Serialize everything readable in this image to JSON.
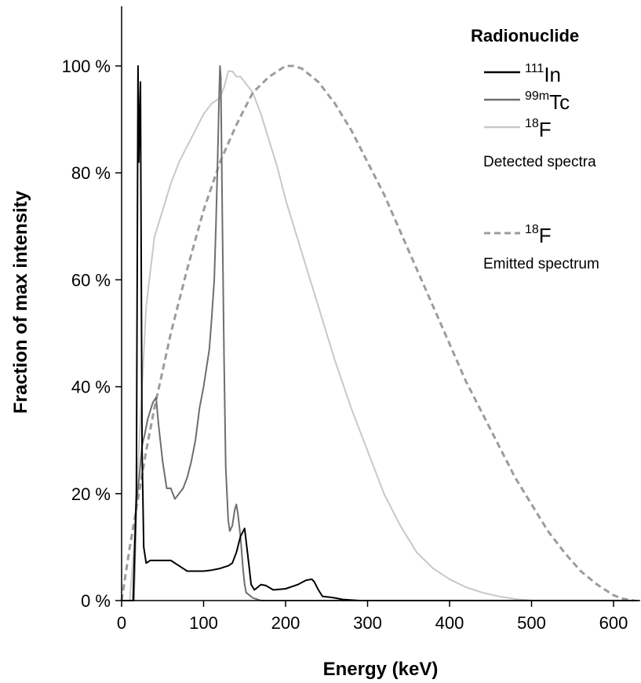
{
  "chart_data": {
    "type": "line",
    "xlabel": "Energy (keV)",
    "ylabel": "Fraction of max intensity",
    "xlim": [
      0,
      630
    ],
    "ylim": [
      0,
      100
    ],
    "x_ticks": [
      0,
      100,
      200,
      300,
      400,
      500,
      600
    ],
    "y_ticks": [
      0,
      20,
      40,
      60,
      80,
      100
    ],
    "y_tick_labels": [
      "0 %",
      "20 %",
      "40 %",
      "60 %",
      "80 %",
      "100 %"
    ],
    "legend": {
      "title": "Radionuclide",
      "placement": "top-right",
      "group_captions": [
        "Detected spectra",
        "Emitted spectrum"
      ]
    },
    "series": [
      {
        "name": "111In",
        "nuclide_sup": "111",
        "nuclide_base": "In",
        "group": "Detected spectra",
        "color": "#000000",
        "style": "solid",
        "x": [
          0,
          14,
          18,
          20,
          21,
          22,
          23,
          24,
          25,
          27,
          30,
          35,
          40,
          50,
          60,
          70,
          80,
          90,
          100,
          110,
          120,
          130,
          135,
          140,
          145,
          150,
          155,
          158,
          162,
          170,
          176,
          185,
          200,
          215,
          225,
          232,
          235,
          240,
          245,
          255,
          260,
          270,
          290,
          350,
          630
        ],
        "y": [
          0,
          0,
          20,
          100,
          82,
          90,
          97,
          60,
          28,
          10,
          7,
          7.5,
          7.5,
          7.5,
          7.5,
          6.5,
          5.5,
          5.5,
          5.5,
          5.7,
          6,
          6.5,
          7,
          9,
          12,
          13.5,
          7,
          3,
          2,
          3,
          2.8,
          2,
          2.2,
          3,
          3.8,
          4,
          3.5,
          2,
          0.8,
          0.6,
          0.5,
          0.2,
          0,
          0,
          0
        ]
      },
      {
        "name": "99mTc",
        "nuclide_sup": "99m",
        "nuclide_base": "Tc",
        "group": "Detected spectra",
        "color": "#6e6e6e",
        "style": "solid",
        "x": [
          0,
          15,
          18,
          22,
          25,
          28,
          32,
          38,
          42,
          45,
          50,
          55,
          60,
          65,
          70,
          75,
          80,
          85,
          90,
          95,
          100,
          103,
          107,
          110,
          113,
          115,
          117,
          119,
          120,
          121,
          123,
          125,
          127,
          130,
          132,
          135,
          138,
          140,
          142,
          145,
          148,
          150,
          152,
          160,
          170,
          630
        ],
        "y": [
          0,
          0,
          18,
          24,
          29,
          31,
          34,
          37,
          38,
          33,
          26,
          21,
          21,
          19,
          20,
          21,
          23,
          26,
          30,
          36,
          40,
          43,
          47,
          53,
          60,
          70,
          82,
          95,
          100,
          98,
          70,
          45,
          25,
          15,
          13,
          14,
          17,
          18,
          16,
          12,
          6,
          3,
          1.5,
          0.5,
          0,
          0
        ]
      },
      {
        "name": "18F",
        "nuclide_sup": "18",
        "nuclide_base": "F",
        "group": "Detected spectra",
        "color": "#c8c8c8",
        "style": "solid",
        "x": [
          0,
          10,
          15,
          20,
          25,
          30,
          40,
          50,
          60,
          70,
          80,
          90,
          100,
          110,
          120,
          125,
          130,
          135,
          140,
          145,
          150,
          155,
          160,
          170,
          180,
          190,
          200,
          220,
          240,
          260,
          280,
          300,
          320,
          340,
          360,
          380,
          400,
          420,
          440,
          460,
          480,
          500,
          630
        ],
        "y": [
          0,
          0,
          10,
          25,
          40,
          55,
          68,
          73,
          78,
          82,
          85,
          88,
          91,
          93,
          94,
          96,
          99,
          99,
          98,
          98,
          97,
          96,
          95,
          91,
          86,
          81,
          75,
          65,
          55,
          45,
          36,
          28,
          20,
          14,
          9,
          6,
          4,
          2.5,
          1.5,
          0.8,
          0.3,
          0,
          0
        ]
      },
      {
        "name": "18F",
        "nuclide_sup": "18",
        "nuclide_base": "F",
        "group": "Emitted spectrum",
        "color": "#9c9c9c",
        "style": "dashed",
        "x": [
          0,
          5,
          10,
          20,
          30,
          40,
          50,
          60,
          80,
          100,
          120,
          140,
          160,
          180,
          200,
          210,
          220,
          240,
          260,
          280,
          300,
          320,
          340,
          360,
          380,
          400,
          420,
          440,
          460,
          480,
          500,
          520,
          540,
          560,
          580,
          600,
          610,
          620,
          625
        ],
        "y": [
          0,
          5,
          10,
          19,
          28,
          36,
          43,
          50,
          62,
          73,
          82,
          89,
          95,
          98,
          100,
          100,
          99.5,
          97,
          93,
          88,
          82,
          76,
          69,
          62,
          55,
          48,
          41,
          35,
          29,
          23,
          18,
          13,
          9,
          5.5,
          3,
          1,
          0.4,
          0.1,
          0
        ]
      }
    ]
  }
}
